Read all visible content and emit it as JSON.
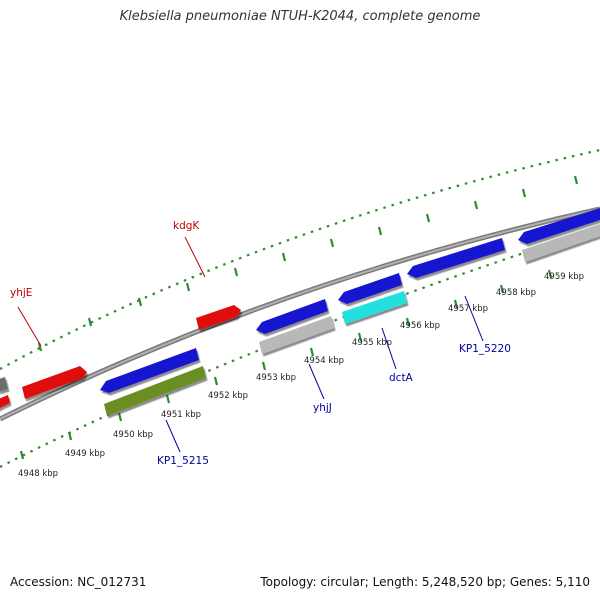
{
  "title": "Klebsiella pneumoniae NTUH-K2044, complete genome",
  "accession": "Accession: NC_012731",
  "stats": "Topology: circular; Length: 5,248,520 bp; Genes: 5,110",
  "colors": {
    "background": "#ffffff",
    "backbone": "#8c8c8c",
    "tick_dots": "#2e8b2e",
    "forward_gene": "#e01010",
    "reverse_gene": "#1515d0",
    "cds_gray": "#b8b8b8",
    "cds_olive": "#6b8e23",
    "cds_cyan": "#22e0e0",
    "label_forward": "#c00000",
    "label_reverse": "#0000a0"
  },
  "kbp_ticks": [
    "4948 kbp",
    "4949 kbp",
    "4950 kbp",
    "4951 kbp",
    "4952 kbp",
    "4953 kbp",
    "4954 kbp",
    "4955 kbp",
    "4956 kbp",
    "4957 kbp",
    "4958 kbp",
    "4959 kbp"
  ],
  "gene_labels": [
    {
      "text": "yhjE",
      "strand": "forward"
    },
    {
      "text": "kdgK",
      "strand": "forward"
    },
    {
      "text": "KP1_5215",
      "strand": "reverse"
    },
    {
      "text": "yhjJ",
      "strand": "reverse"
    },
    {
      "text": "dctA",
      "strand": "reverse"
    },
    {
      "text": "KP1_5220",
      "strand": "reverse"
    }
  ]
}
